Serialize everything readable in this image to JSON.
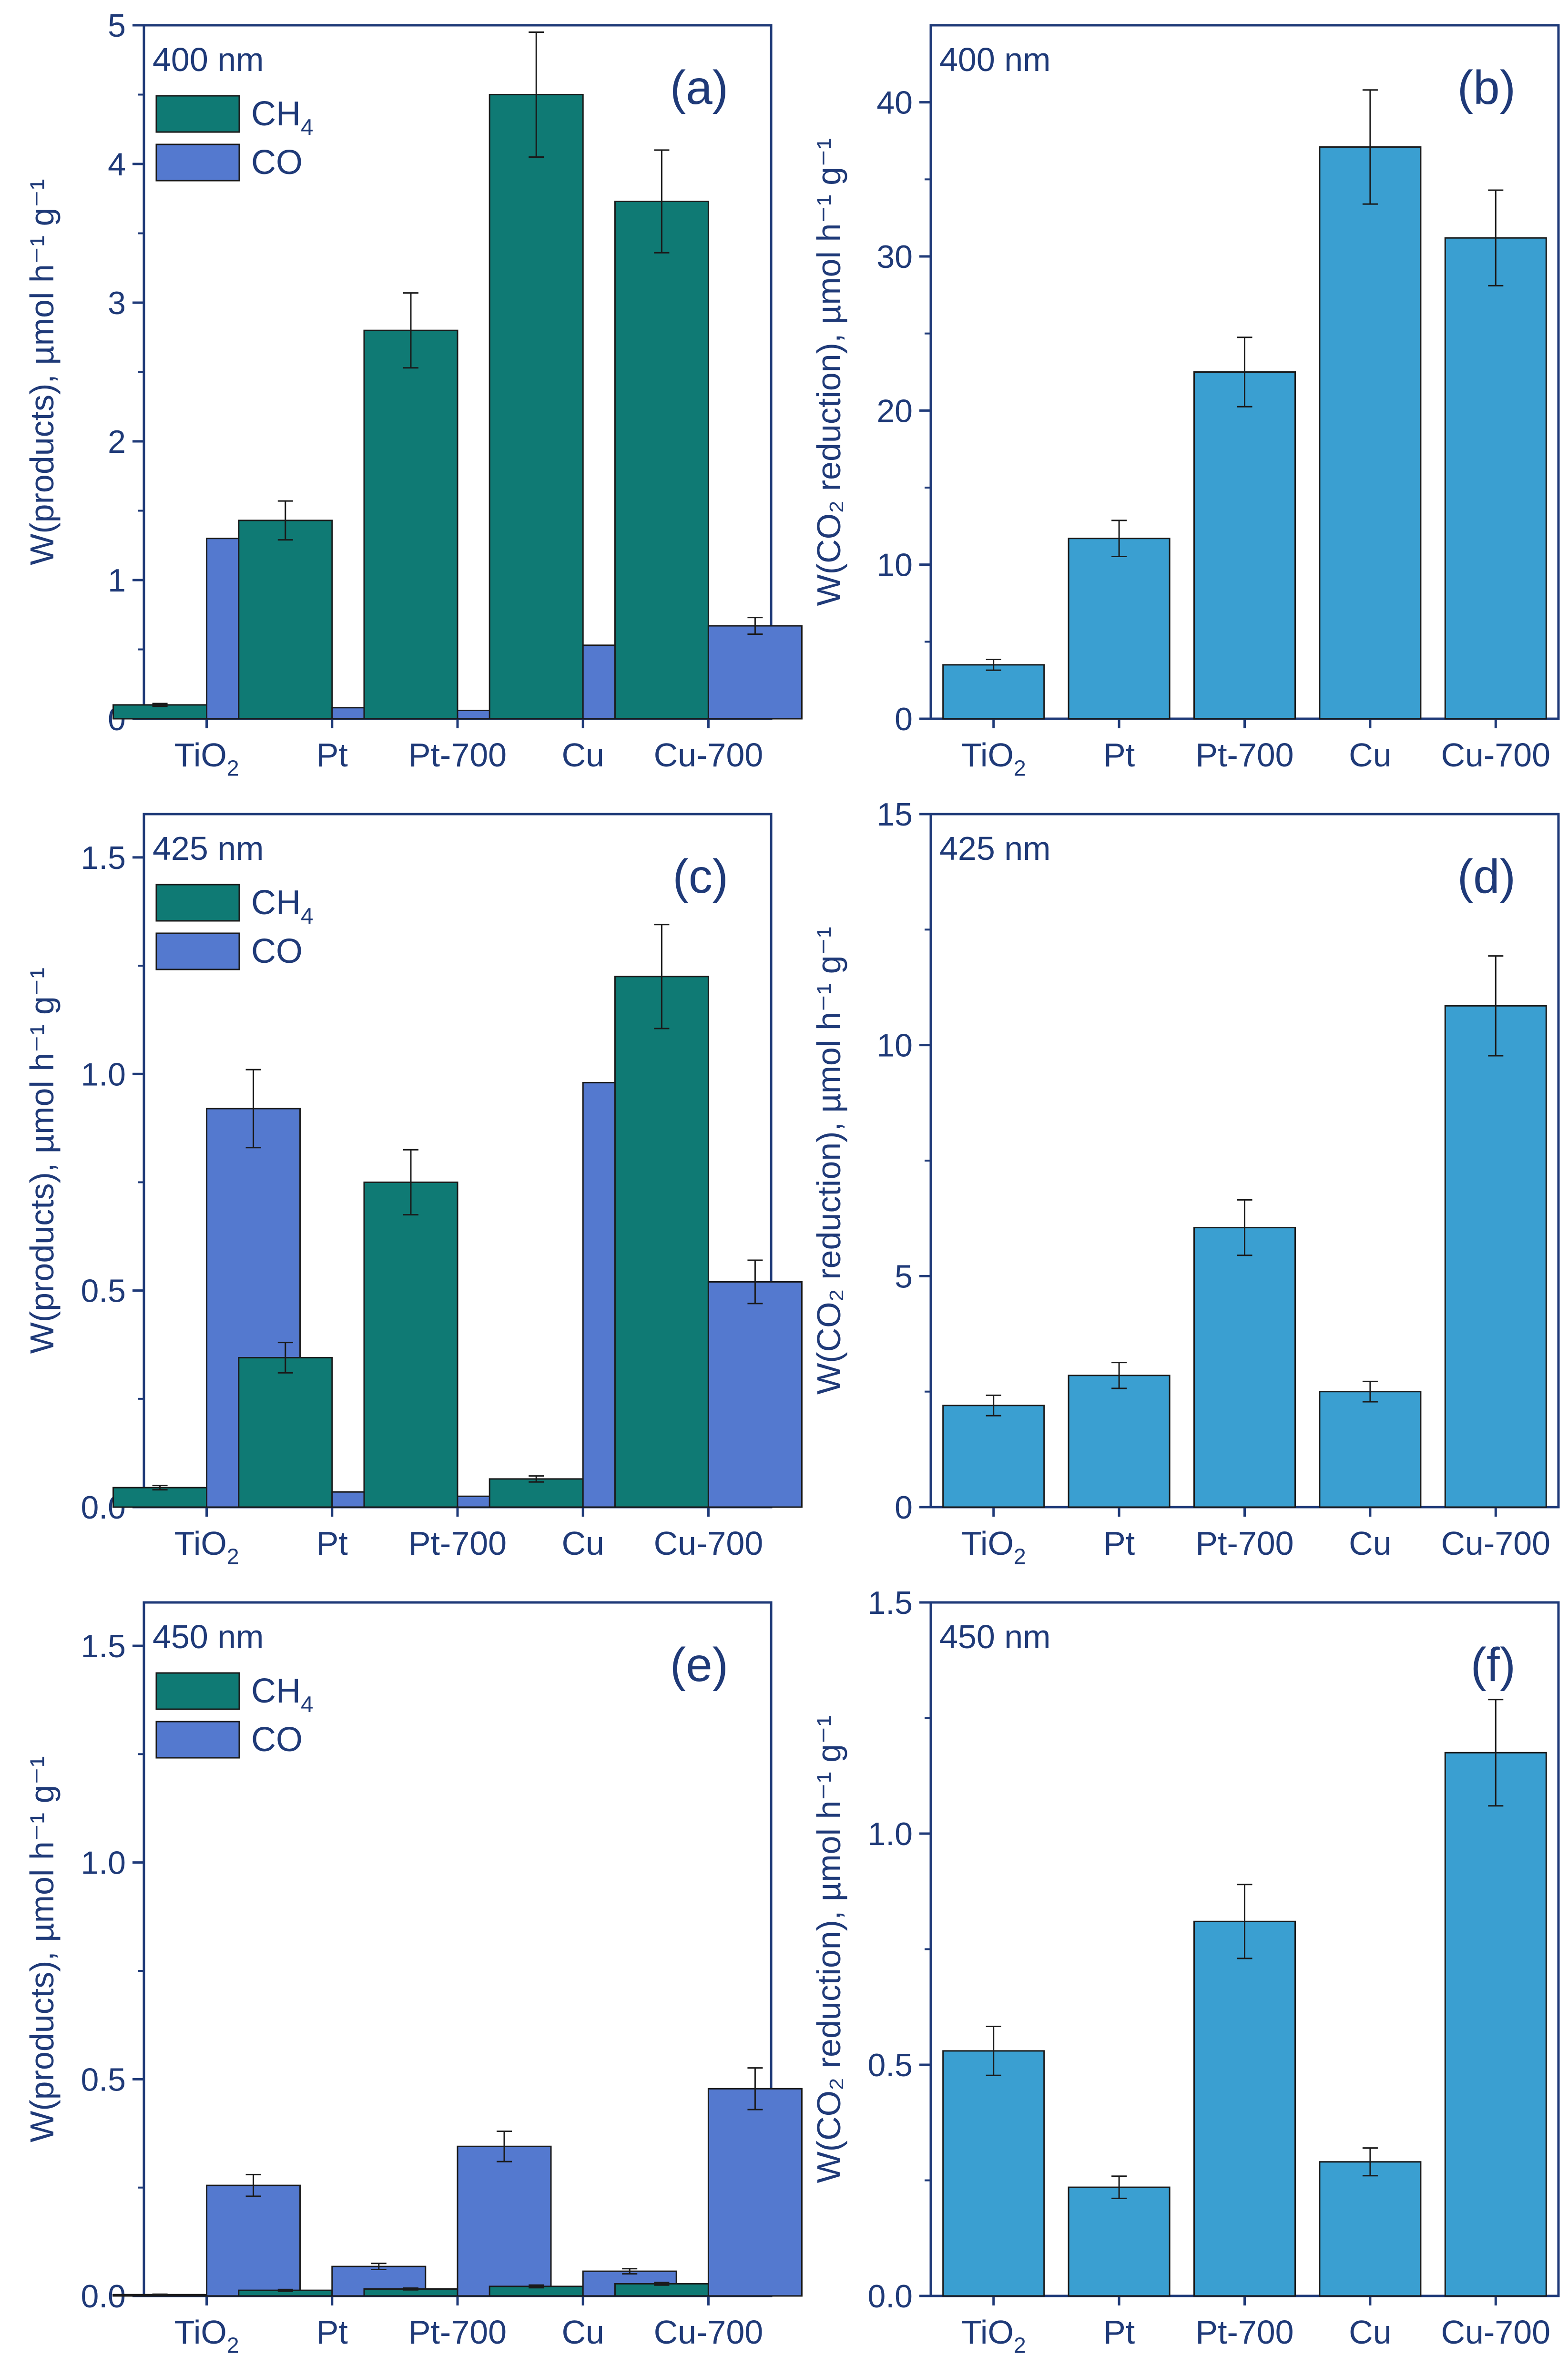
{
  "figure": {
    "colors": {
      "axis": "#1f3a78",
      "ch4": "#0f7a74",
      "co": "#5479cf",
      "total": "#3a9fd1",
      "bar_edge": "#1a1a1a",
      "error": "#1a1a1a"
    }
  },
  "chart_data": [
    {
      "panel": "a",
      "panel_label": "(a)",
      "wavelength": "400 nm",
      "type": "bar",
      "categories": [
        {
          "main": "TiO",
          "sub": "2"
        },
        {
          "main": "Pt",
          "sub": ""
        },
        {
          "main": "Pt-700",
          "sub": ""
        },
        {
          "main": "Cu",
          "sub": ""
        },
        {
          "main": "Cu-700",
          "sub": ""
        }
      ],
      "ylabel": "W(products), µmol h⁻¹ g⁻¹",
      "ylim": [
        0,
        5
      ],
      "yticks": [
        0,
        1,
        2,
        3,
        4,
        5
      ],
      "ytick_labels": [
        "0",
        "1",
        "2",
        "3",
        "4",
        "5"
      ],
      "legend": [
        {
          "main": "CH",
          "sub": "4"
        },
        {
          "main": "CO",
          "sub": ""
        }
      ],
      "series": [
        {
          "name": "CH4",
          "color_key": "ch4",
          "values": [
            0.1,
            1.43,
            2.8,
            4.5,
            3.73
          ],
          "errors": [
            0.01,
            0.14,
            0.27,
            0.45,
            0.37
          ]
        },
        {
          "name": "CO",
          "color_key": "co",
          "values": [
            1.3,
            0.08,
            0.06,
            0.53,
            0.67
          ],
          "errors": [
            0.12,
            0.01,
            0.005,
            0.05,
            0.06
          ]
        }
      ]
    },
    {
      "panel": "b",
      "panel_label": "(b)",
      "wavelength": "400 nm",
      "type": "bar",
      "categories": [
        {
          "main": "TiO",
          "sub": "2"
        },
        {
          "main": "Pt",
          "sub": ""
        },
        {
          "main": "Pt-700",
          "sub": ""
        },
        {
          "main": "Cu",
          "sub": ""
        },
        {
          "main": "Cu-700",
          "sub": ""
        }
      ],
      "ylabel": "W(CO₂ reduction), µmol h⁻¹ g⁻¹",
      "ylim": [
        0,
        45
      ],
      "yticks": [
        0,
        10,
        20,
        30,
        40
      ],
      "ytick_labels": [
        "0",
        "10",
        "20",
        "30",
        "40"
      ],
      "legend": [],
      "series": [
        {
          "name": "W(CO2 reduction)",
          "color_key": "total",
          "values": [
            3.5,
            11.7,
            22.5,
            37.1,
            31.2
          ],
          "errors": [
            0.35,
            1.17,
            2.25,
            3.7,
            3.1
          ]
        }
      ]
    },
    {
      "panel": "c",
      "panel_label": "(c)",
      "wavelength": "425 nm",
      "type": "bar",
      "categories": [
        {
          "main": "TiO",
          "sub": "2"
        },
        {
          "main": "Pt",
          "sub": ""
        },
        {
          "main": "Pt-700",
          "sub": ""
        },
        {
          "main": "Cu",
          "sub": ""
        },
        {
          "main": "Cu-700",
          "sub": ""
        }
      ],
      "ylabel": "W(products), µmol h⁻¹ g⁻¹",
      "ylim": [
        0,
        1.6
      ],
      "yticks": [
        0,
        0.5,
        1.0,
        1.5
      ],
      "ytick_labels": [
        "0.0",
        "0.5",
        "1.0",
        "1.5"
      ],
      "legend": [
        {
          "main": "CH",
          "sub": "4"
        },
        {
          "main": "CO",
          "sub": ""
        }
      ],
      "series": [
        {
          "name": "CH4",
          "color_key": "ch4",
          "values": [
            0.045,
            0.345,
            0.75,
            0.065,
            1.225
          ],
          "errors": [
            0.005,
            0.035,
            0.075,
            0.007,
            0.12
          ]
        },
        {
          "name": "CO",
          "color_key": "co",
          "values": [
            0.92,
            0.035,
            0.025,
            0.98,
            0.52
          ],
          "errors": [
            0.09,
            0.004,
            0.003,
            0.095,
            0.05
          ]
        }
      ]
    },
    {
      "panel": "d",
      "panel_label": "(d)",
      "wavelength": "425 nm",
      "type": "bar",
      "categories": [
        {
          "main": "TiO",
          "sub": "2"
        },
        {
          "main": "Pt",
          "sub": ""
        },
        {
          "main": "Pt-700",
          "sub": ""
        },
        {
          "main": "Cu",
          "sub": ""
        },
        {
          "main": "Cu-700",
          "sub": ""
        }
      ],
      "ylabel": "W(CO₂ reduction), µmol h⁻¹ g⁻¹",
      "ylim": [
        0,
        15
      ],
      "yticks": [
        0,
        5,
        10,
        15
      ],
      "ytick_labels": [
        "0",
        "5",
        "10",
        "15"
      ],
      "legend": [],
      "series": [
        {
          "name": "W(CO2 reduction)",
          "color_key": "total",
          "values": [
            2.2,
            2.85,
            6.05,
            2.5,
            10.85
          ],
          "errors": [
            0.22,
            0.28,
            0.6,
            0.22,
            1.08
          ]
        }
      ]
    },
    {
      "panel": "e",
      "panel_label": "(e)",
      "wavelength": "450 nm",
      "type": "bar",
      "categories": [
        {
          "main": "TiO",
          "sub": "2"
        },
        {
          "main": "Pt",
          "sub": ""
        },
        {
          "main": "Pt-700",
          "sub": ""
        },
        {
          "main": "Cu",
          "sub": ""
        },
        {
          "main": "Cu-700",
          "sub": ""
        }
      ],
      "ylabel": "W(products), µmol h⁻¹ g⁻¹",
      "ylim": [
        0,
        1.6
      ],
      "yticks": [
        0,
        0.5,
        1.0,
        1.5
      ],
      "ytick_labels": [
        "0.0",
        "0.5",
        "1.0",
        "1.5"
      ],
      "legend": [
        {
          "main": "CH",
          "sub": "4"
        },
        {
          "main": "CO",
          "sub": ""
        }
      ],
      "series": [
        {
          "name": "CH4",
          "color_key": "ch4",
          "values": [
            0.003,
            0.013,
            0.016,
            0.022,
            0.028
          ],
          "errors": [
            0.001,
            0.002,
            0.002,
            0.003,
            0.003
          ]
        },
        {
          "name": "CO",
          "color_key": "co",
          "values": [
            0.255,
            0.068,
            0.345,
            0.057,
            0.478
          ],
          "errors": [
            0.025,
            0.007,
            0.035,
            0.006,
            0.048
          ]
        }
      ]
    },
    {
      "panel": "f",
      "panel_label": "(f)",
      "wavelength": "450 nm",
      "type": "bar",
      "categories": [
        {
          "main": "TiO",
          "sub": "2"
        },
        {
          "main": "Pt",
          "sub": ""
        },
        {
          "main": "Pt-700",
          "sub": ""
        },
        {
          "main": "Cu",
          "sub": ""
        },
        {
          "main": "Cu-700",
          "sub": ""
        }
      ],
      "ylabel": "W(CO₂ reduction), µmol h⁻¹ g⁻¹",
      "ylim": [
        0,
        1.5
      ],
      "yticks": [
        0,
        0.5,
        1.0,
        1.5
      ],
      "ytick_labels": [
        "0.0",
        "0.5",
        "1.0",
        "1.5"
      ],
      "legend": [],
      "series": [
        {
          "name": "W(CO2 reduction)",
          "color_key": "total",
          "values": [
            0.53,
            0.235,
            0.81,
            0.29,
            1.175
          ],
          "errors": [
            0.053,
            0.024,
            0.08,
            0.03,
            0.115
          ]
        }
      ]
    }
  ]
}
